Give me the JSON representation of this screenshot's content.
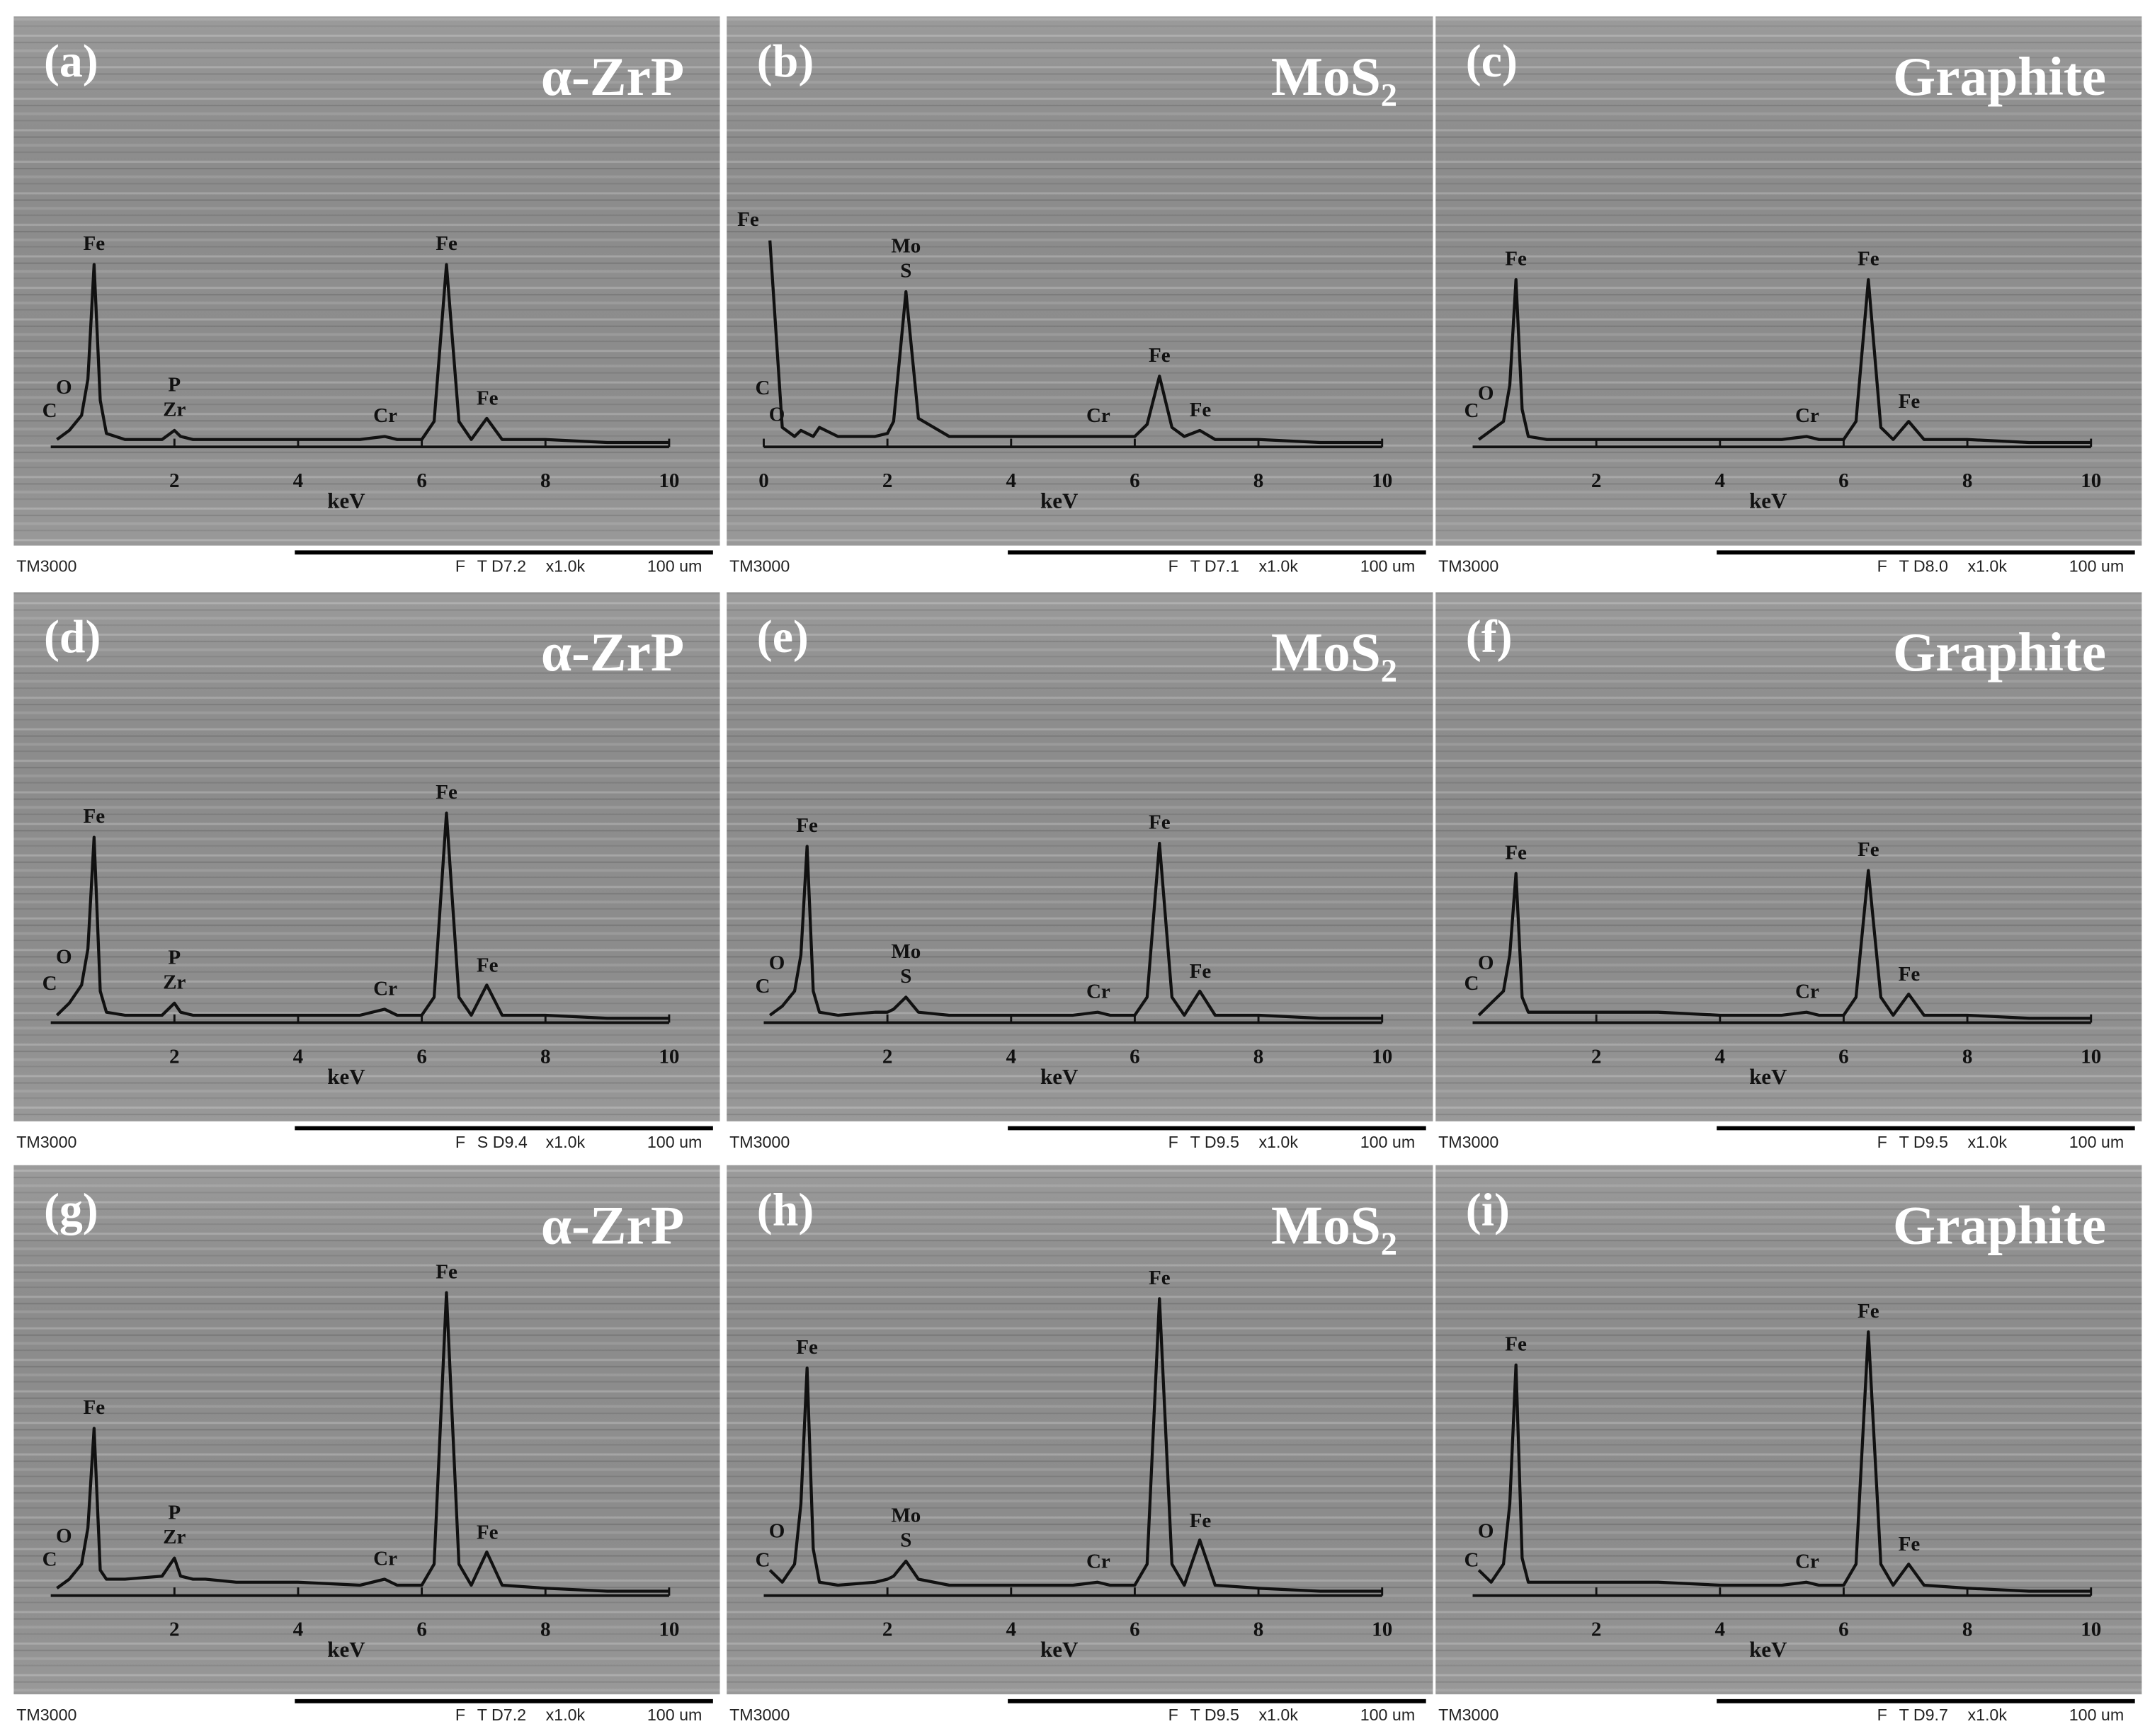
{
  "chart_data": [
    {
      "type": "line",
      "panel_label": "(a)",
      "title": "α-ZrP",
      "x": [
        0.1,
        0.3,
        0.5,
        0.6,
        0.7,
        0.8,
        0.9,
        1.2,
        1.8,
        2.0,
        2.1,
        2.3,
        2.5,
        3,
        4,
        5,
        5.4,
        5.6,
        6,
        6.2,
        6.4,
        6.6,
        6.8,
        7.05,
        7.3,
        8,
        9,
        10
      ],
      "values": [
        2,
        5,
        10,
        22,
        60,
        15,
        4,
        2,
        2,
        5,
        3,
        2,
        2,
        2,
        2,
        2,
        3,
        2,
        2,
        8,
        60,
        8,
        2,
        9,
        2,
        2,
        1,
        1
      ],
      "xlim": [
        0,
        10
      ],
      "ylim": [
        0,
        100
      ],
      "xticks": [
        2,
        4,
        6,
        8,
        10
      ],
      "xlabel": "keV",
      "color": "#111111",
      "peak_labels": [
        {
          "text": "C",
          "x": 0.28
        },
        {
          "text": "O",
          "x": 0.52
        },
        {
          "text": "Fe",
          "x": 0.7
        },
        {
          "text": "Zr",
          "x": 2.0
        },
        {
          "text": "P",
          "x": 2.0
        },
        {
          "text": "Cr",
          "x": 5.41
        },
        {
          "text": "Fe",
          "x": 6.4
        },
        {
          "text": "Fe",
          "x": 7.06
        }
      ],
      "footer": [
        "TM3000",
        "F",
        "T D7.2",
        "x1.0k",
        "100 um"
      ]
    },
    {
      "type": "line",
      "panel_label": "(b)",
      "title": "MoS₂",
      "x": [
        0.1,
        0.3,
        0.5,
        0.6,
        0.7,
        0.8,
        0.9,
        1.2,
        1.8,
        2.0,
        2.1,
        2.3,
        2.5,
        3,
        4,
        5,
        5.4,
        5.6,
        6,
        6.2,
        6.4,
        6.6,
        6.8,
        7.05,
        7.3,
        8,
        9,
        10
      ],
      "values": [
        68,
        6,
        3,
        5,
        4,
        3,
        6,
        3,
        3,
        4,
        8,
        51,
        9,
        3,
        3,
        3,
        3,
        3,
        3,
        7,
        23,
        6,
        3,
        5,
        2,
        2,
        1,
        1
      ],
      "xlim": [
        0,
        10
      ],
      "ylim": [
        0,
        100
      ],
      "xticks": [
        0,
        2,
        4,
        6,
        8,
        10
      ],
      "xlabel": "keV",
      "color": "#111111",
      "peak_labels": [
        {
          "text": "C",
          "x": 0.28
        },
        {
          "text": "O",
          "x": 0.52
        },
        {
          "text": "Fe",
          "x": 0.1
        },
        {
          "text": "S",
          "x": 2.3
        },
        {
          "text": "Mo",
          "x": 2.3
        },
        {
          "text": "Cr",
          "x": 5.41
        },
        {
          "text": "Fe",
          "x": 6.4
        },
        {
          "text": "Fe",
          "x": 7.06
        }
      ],
      "footer": [
        "TM3000",
        "F",
        "T D7.1",
        "x1.0k",
        "100 um"
      ]
    },
    {
      "type": "line",
      "panel_label": "(c)",
      "title": "Graphite",
      "x": [
        0.1,
        0.3,
        0.5,
        0.6,
        0.7,
        0.8,
        0.9,
        1.2,
        1.8,
        2.0,
        2.1,
        2.3,
        2.5,
        3,
        4,
        5,
        5.4,
        5.6,
        6,
        6.2,
        6.4,
        6.6,
        6.8,
        7.05,
        7.3,
        8,
        9,
        10
      ],
      "values": [
        2,
        5,
        8,
        20,
        55,
        12,
        3,
        2,
        2,
        2,
        2,
        2,
        2,
        2,
        2,
        2,
        3,
        2,
        2,
        8,
        55,
        6,
        2,
        8,
        2,
        2,
        1,
        1
      ],
      "xlim": [
        0,
        10
      ],
      "ylim": [
        0,
        100
      ],
      "xticks": [
        2,
        4,
        6,
        8,
        10
      ],
      "xlabel": "keV",
      "color": "#111111",
      "peak_labels": [
        {
          "text": "C",
          "x": 0.28
        },
        {
          "text": "O",
          "x": 0.52
        },
        {
          "text": "Fe",
          "x": 0.7
        },
        {
          "text": "Cr",
          "x": 5.41
        },
        {
          "text": "Fe",
          "x": 6.4
        },
        {
          "text": "Fe",
          "x": 7.06
        }
      ],
      "footer": [
        "TM3000",
        "F",
        "T D8.0",
        "x1.0k",
        "100 um"
      ]
    },
    {
      "type": "line",
      "panel_label": "(d)",
      "title": "α-ZrP",
      "x": [
        0.1,
        0.3,
        0.5,
        0.6,
        0.7,
        0.8,
        0.9,
        1.2,
        1.8,
        2.0,
        2.1,
        2.3,
        2.5,
        3,
        4,
        5,
        5.4,
        5.6,
        6,
        6.2,
        6.4,
        6.6,
        6.8,
        7.05,
        7.3,
        8,
        9,
        10
      ],
      "values": [
        2,
        6,
        12,
        24,
        61,
        10,
        3,
        2,
        2,
        6,
        3,
        2,
        2,
        2,
        2,
        2,
        4,
        2,
        2,
        8,
        69,
        8,
        2,
        12,
        2,
        2,
        1,
        1
      ],
      "xlim": [
        0,
        10
      ],
      "ylim": [
        0,
        100
      ],
      "xticks": [
        2,
        4,
        6,
        8,
        10
      ],
      "xlabel": "keV",
      "color": "#111111",
      "peak_labels": [
        {
          "text": "C",
          "x": 0.28
        },
        {
          "text": "O",
          "x": 0.52
        },
        {
          "text": "Fe",
          "x": 0.7
        },
        {
          "text": "Zr",
          "x": 2.0
        },
        {
          "text": "P",
          "x": 2.0
        },
        {
          "text": "Cr",
          "x": 5.41
        },
        {
          "text": "Fe",
          "x": 6.4
        },
        {
          "text": "Fe",
          "x": 7.06
        }
      ],
      "footer": [
        "TM3000",
        "F",
        "S D9.4",
        "x1.0k",
        "100 um"
      ]
    },
    {
      "type": "line",
      "panel_label": "(e)",
      "title": "MoS₂",
      "x": [
        0.1,
        0.3,
        0.5,
        0.6,
        0.7,
        0.8,
        0.9,
        1.2,
        1.8,
        2.0,
        2.1,
        2.3,
        2.5,
        3,
        4,
        5,
        5.4,
        5.6,
        6,
        6.2,
        6.4,
        6.6,
        6.8,
        7.05,
        7.3,
        8,
        9,
        10
      ],
      "values": [
        2,
        5,
        10,
        22,
        58,
        10,
        3,
        2,
        3,
        3,
        4,
        8,
        3,
        2,
        2,
        2,
        3,
        2,
        2,
        8,
        59,
        8,
        2,
        10,
        2,
        2,
        1,
        1
      ],
      "xlim": [
        0,
        10
      ],
      "ylim": [
        0,
        100
      ],
      "xticks": [
        2,
        4,
        6,
        8,
        10
      ],
      "xlabel": "keV",
      "color": "#111111",
      "peak_labels": [
        {
          "text": "C",
          "x": 0.28
        },
        {
          "text": "O",
          "x": 0.52
        },
        {
          "text": "Fe",
          "x": 0.7
        },
        {
          "text": "S",
          "x": 2.3
        },
        {
          "text": "Mo",
          "x": 2.3
        },
        {
          "text": "Cr",
          "x": 5.41
        },
        {
          "text": "Fe",
          "x": 6.4
        },
        {
          "text": "Fe",
          "x": 7.06
        }
      ],
      "footer": [
        "TM3000",
        "F",
        "T D9.5",
        "x1.0k",
        "100 um"
      ]
    },
    {
      "type": "line",
      "panel_label": "(f)",
      "title": "Graphite",
      "x": [
        0.1,
        0.3,
        0.5,
        0.6,
        0.7,
        0.8,
        0.9,
        1.2,
        1.8,
        2.0,
        2.1,
        2.3,
        2.5,
        3,
        4,
        5,
        5.4,
        5.6,
        6,
        6.2,
        6.4,
        6.6,
        6.8,
        7.05,
        7.3,
        8,
        9,
        10
      ],
      "values": [
        2,
        6,
        10,
        22,
        49,
        8,
        3,
        3,
        3,
        3,
        3,
        3,
        3,
        3,
        2,
        2,
        3,
        2,
        2,
        8,
        50,
        8,
        2,
        9,
        2,
        2,
        1,
        1
      ],
      "xlim": [
        0,
        10
      ],
      "ylim": [
        0,
        100
      ],
      "xticks": [
        2,
        4,
        6,
        8,
        10
      ],
      "xlabel": "keV",
      "color": "#111111",
      "peak_labels": [
        {
          "text": "C",
          "x": 0.28
        },
        {
          "text": "O",
          "x": 0.52
        },
        {
          "text": "Fe",
          "x": 0.7
        },
        {
          "text": "Cr",
          "x": 5.41
        },
        {
          "text": "Fe",
          "x": 6.4
        },
        {
          "text": "Fe",
          "x": 7.06
        }
      ],
      "footer": [
        "TM3000",
        "F",
        "T D9.5",
        "x1.0k",
        "100 um"
      ]
    },
    {
      "type": "line",
      "panel_label": "(g)",
      "title": "α-ZrP",
      "x": [
        0.1,
        0.3,
        0.5,
        0.6,
        0.7,
        0.8,
        0.9,
        1.2,
        1.8,
        2.0,
        2.1,
        2.3,
        2.5,
        3,
        4,
        5,
        5.4,
        5.6,
        6,
        6.2,
        6.4,
        6.6,
        6.8,
        7.05,
        7.3,
        8,
        9,
        10
      ],
      "values": [
        2,
        5,
        10,
        22,
        55,
        8,
        5,
        5,
        6,
        12,
        6,
        5,
        5,
        4,
        4,
        3,
        5,
        3,
        3,
        10,
        100,
        10,
        3,
        14,
        3,
        2,
        1,
        1
      ],
      "xlim": [
        0,
        10
      ],
      "ylim": [
        0,
        100
      ],
      "xticks": [
        2,
        4,
        6,
        8,
        10
      ],
      "xlabel": "keV",
      "color": "#111111",
      "peak_labels": [
        {
          "text": "C",
          "x": 0.28
        },
        {
          "text": "O",
          "x": 0.52
        },
        {
          "text": "Fe",
          "x": 0.7
        },
        {
          "text": "Zr",
          "x": 2.0
        },
        {
          "text": "P",
          "x": 2.0
        },
        {
          "text": "Cr",
          "x": 5.41
        },
        {
          "text": "Fe",
          "x": 6.4
        },
        {
          "text": "Fe",
          "x": 7.06
        }
      ],
      "footer": [
        "TM3000",
        "F",
        "T D7.2",
        "x1.0k",
        "100 um"
      ]
    },
    {
      "type": "line",
      "panel_label": "(h)",
      "title": "MoS₂",
      "x": [
        0.1,
        0.3,
        0.5,
        0.6,
        0.7,
        0.8,
        0.9,
        1.2,
        1.8,
        2.0,
        2.1,
        2.3,
        2.5,
        3,
        4,
        5,
        5.4,
        5.6,
        6,
        6.2,
        6.4,
        6.6,
        6.8,
        7.05,
        7.3,
        8,
        9,
        10
      ],
      "values": [
        8,
        4,
        10,
        30,
        75,
        15,
        4,
        3,
        4,
        5,
        6,
        11,
        5,
        3,
        3,
        3,
        4,
        3,
        3,
        10,
        98,
        10,
        3,
        18,
        3,
        2,
        1,
        1
      ],
      "xlim": [
        0,
        10
      ],
      "ylim": [
        0,
        100
      ],
      "xticks": [
        2,
        4,
        6,
        8,
        10
      ],
      "xlabel": "keV",
      "color": "#111111",
      "peak_labels": [
        {
          "text": "C",
          "x": 0.28
        },
        {
          "text": "O",
          "x": 0.52
        },
        {
          "text": "Fe",
          "x": 0.7
        },
        {
          "text": "S",
          "x": 2.3
        },
        {
          "text": "Mo",
          "x": 2.3
        },
        {
          "text": "Cr",
          "x": 5.41
        },
        {
          "text": "Fe",
          "x": 6.4
        },
        {
          "text": "Fe",
          "x": 7.06
        }
      ],
      "footer": [
        "TM3000",
        "F",
        "T D9.5",
        "x1.0k",
        "100 um"
      ]
    },
    {
      "type": "line",
      "panel_label": "(i)",
      "title": "Graphite",
      "x": [
        0.1,
        0.3,
        0.5,
        0.6,
        0.7,
        0.8,
        0.9,
        1.2,
        1.8,
        2.0,
        2.1,
        2.3,
        2.5,
        3,
        4,
        5,
        5.4,
        5.6,
        6,
        6.2,
        6.4,
        6.6,
        6.8,
        7.05,
        7.3,
        8,
        9,
        10
      ],
      "values": [
        8,
        4,
        10,
        30,
        76,
        12,
        4,
        4,
        4,
        4,
        4,
        4,
        4,
        4,
        3,
        3,
        4,
        3,
        3,
        10,
        87,
        10,
        3,
        10,
        3,
        2,
        1,
        1
      ],
      "xlim": [
        0,
        10
      ],
      "ylim": [
        0,
        100
      ],
      "xticks": [
        2,
        4,
        6,
        8,
        10
      ],
      "xlabel": "keV",
      "color": "#111111",
      "peak_labels": [
        {
          "text": "C",
          "x": 0.28
        },
        {
          "text": "O",
          "x": 0.52
        },
        {
          "text": "Fe",
          "x": 0.7
        },
        {
          "text": "Cr",
          "x": 5.41
        },
        {
          "text": "Fe",
          "x": 6.4
        },
        {
          "text": "Fe",
          "x": 7.06
        }
      ],
      "footer": [
        "TM3000",
        "F",
        "T D9.7",
        "x1.0k",
        "100 um"
      ]
    }
  ]
}
